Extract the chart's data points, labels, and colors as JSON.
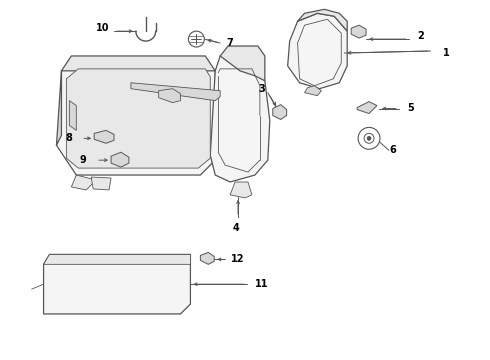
{
  "background_color": "#ffffff",
  "line_color": "#555555",
  "label_color": "#000000",
  "fig_width": 4.9,
  "fig_height": 3.6,
  "dpi": 100,
  "label_fs": 7.0,
  "thin_lw": 0.6,
  "main_lw": 0.9
}
